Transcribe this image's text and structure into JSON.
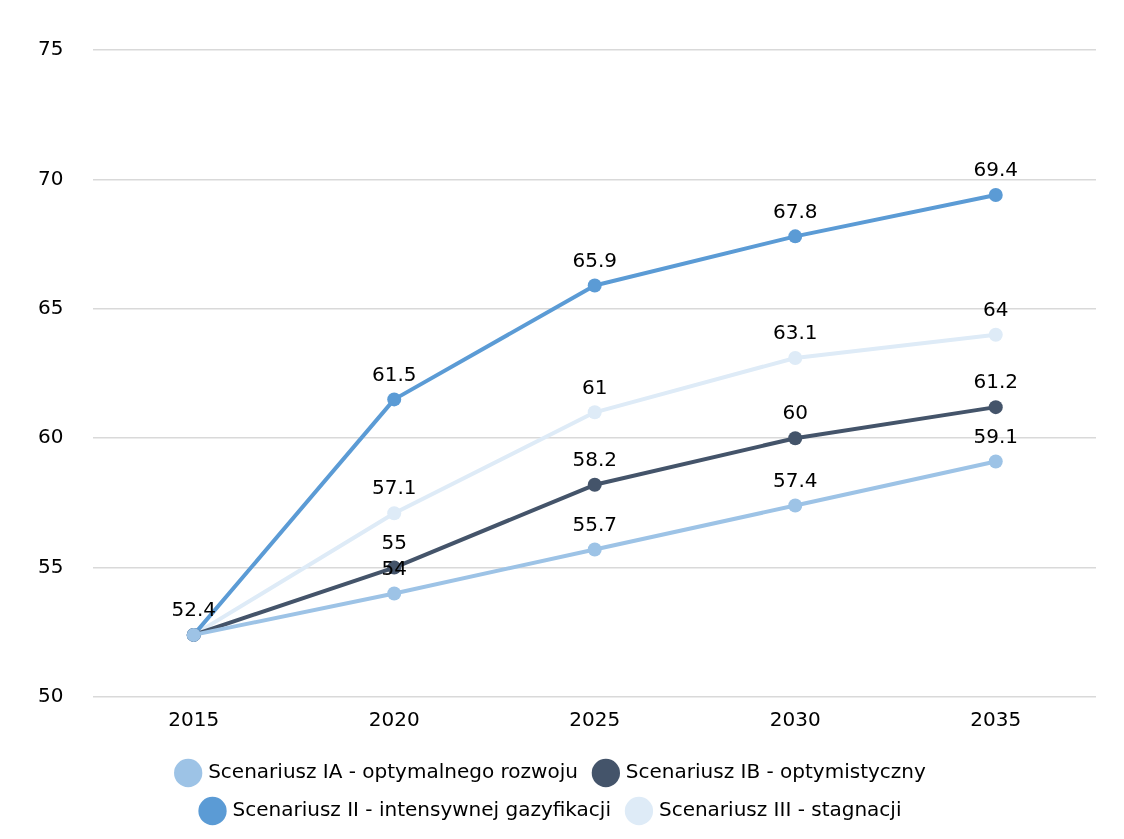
{
  "chart_data": {
    "type": "line",
    "categories": [
      "2015",
      "2020",
      "2025",
      "2030",
      "2035"
    ],
    "series": [
      {
        "name": "Scenariusz IA - optymalnego rozwoju",
        "color": "#9dc3e6",
        "values": [
          52.4,
          54,
          55.7,
          57.4,
          59.1
        ],
        "value_labels": [
          "52.4",
          "54",
          "55.7",
          "57.4",
          "59.1"
        ]
      },
      {
        "name": "Scenariusz IB - optymistyczny",
        "color": "#44546a",
        "values": [
          52.4,
          55,
          58.2,
          60,
          61.2
        ],
        "value_labels": [
          null,
          "55",
          "58.2",
          "60",
          "61.2"
        ]
      },
      {
        "name": "Scenariusz II - intensywnej gazyfikacji",
        "color": "#5b9bd5",
        "values": [
          52.4,
          61.5,
          65.9,
          67.8,
          69.4
        ],
        "value_labels": [
          null,
          "61.5",
          "65.9",
          "67.8",
          "69.4"
        ]
      },
      {
        "name": "Scenariusz III - stagnacji",
        "color": "#deebf7",
        "values": [
          52.4,
          57.1,
          61,
          63.1,
          64
        ],
        "value_labels": [
          null,
          "57.1",
          "61",
          "63.1",
          "64"
        ]
      }
    ],
    "ylim": [
      50,
      75
    ],
    "yticks": [
      50,
      55,
      60,
      65,
      70,
      75
    ],
    "grid": "y",
    "legend": "bottom",
    "marker": "circle",
    "line_style": "solid"
  }
}
